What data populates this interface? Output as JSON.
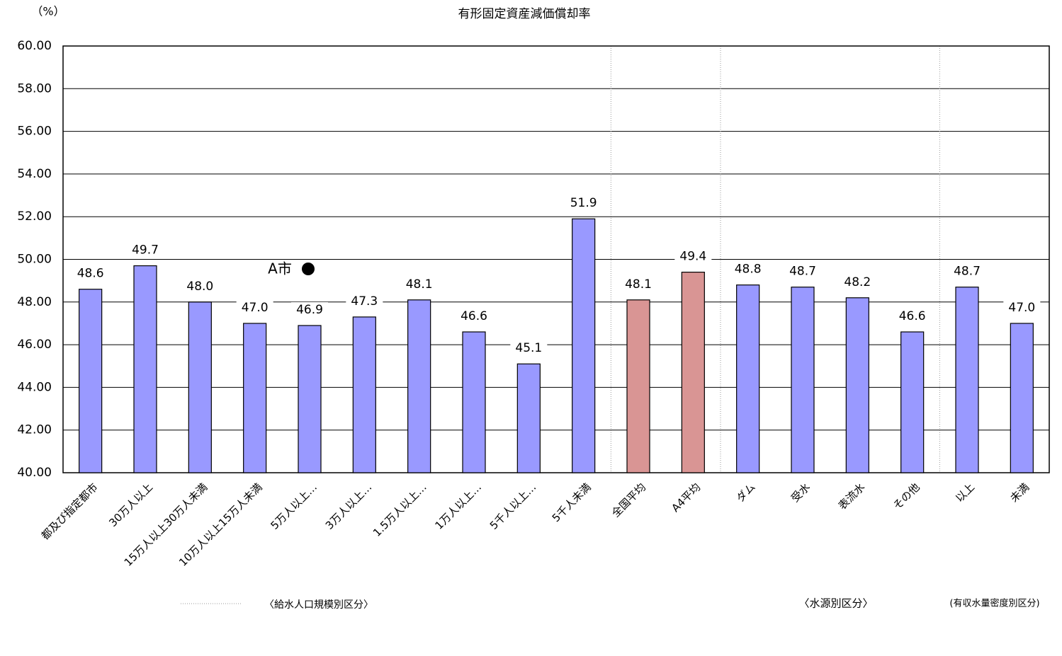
{
  "chart_data": {
    "type": "bar",
    "title": "有形固定資産減価償却率",
    "y_unit": "（%）",
    "categories": [
      "都及び指定都市",
      "30万人以上",
      "15万人以上30万人未満",
      "10万人以上15万人未満",
      "5万人以上…",
      "3万人以上…",
      "1.5万人以上…",
      "1万人以上…",
      "5千人以上…",
      "5千人未満",
      "全国平均",
      "A4平均",
      "ダム",
      "受水",
      "表流水",
      "その他",
      "以上",
      "未満"
    ],
    "values": [
      48.6,
      49.7,
      48.0,
      47.0,
      46.9,
      47.3,
      48.1,
      46.6,
      45.1,
      51.9,
      48.1,
      49.4,
      48.8,
      48.7,
      48.2,
      46.6,
      48.7,
      47.0
    ],
    "value_labels": [
      "48.6",
      "49.7",
      "48.0",
      "47.0",
      "46.9",
      "47.3",
      "48.1",
      "46.6",
      "45.1",
      "51.9",
      "48.1",
      "49.4",
      "48.8",
      "48.7",
      "48.2",
      "46.6",
      "48.7",
      "47.0"
    ],
    "colors": [
      "#9999ff",
      "#9999ff",
      "#9999ff",
      "#9999ff",
      "#9999ff",
      "#9999ff",
      "#9999ff",
      "#9999ff",
      "#9999ff",
      "#9999ff",
      "#d99594",
      "#d99594",
      "#9999ff",
      "#9999ff",
      "#9999ff",
      "#9999ff",
      "#9999ff",
      "#9999ff"
    ],
    "ylim": [
      40,
      60
    ],
    "yticks": [
      {
        "value": 40,
        "label": "40.00"
      },
      {
        "value": 42,
        "label": "42.00"
      },
      {
        "value": 44,
        "label": "44.00"
      },
      {
        "value": 46,
        "label": "46.00"
      },
      {
        "value": 48,
        "label": "48.00"
      },
      {
        "value": 50,
        "label": "50.00"
      },
      {
        "value": 52,
        "label": "52.00"
      },
      {
        "value": 54,
        "label": "54.00"
      },
      {
        "value": 56,
        "label": "56.00"
      },
      {
        "value": 58,
        "label": "58.00"
      },
      {
        "value": 60,
        "label": "60.00"
      }
    ],
    "grid": true,
    "annotation": "A市",
    "group_labels": [
      "〈給水人口規模別区分〉",
      "〈水源別区分〉",
      "(有収水量密度別区分)"
    ]
  }
}
